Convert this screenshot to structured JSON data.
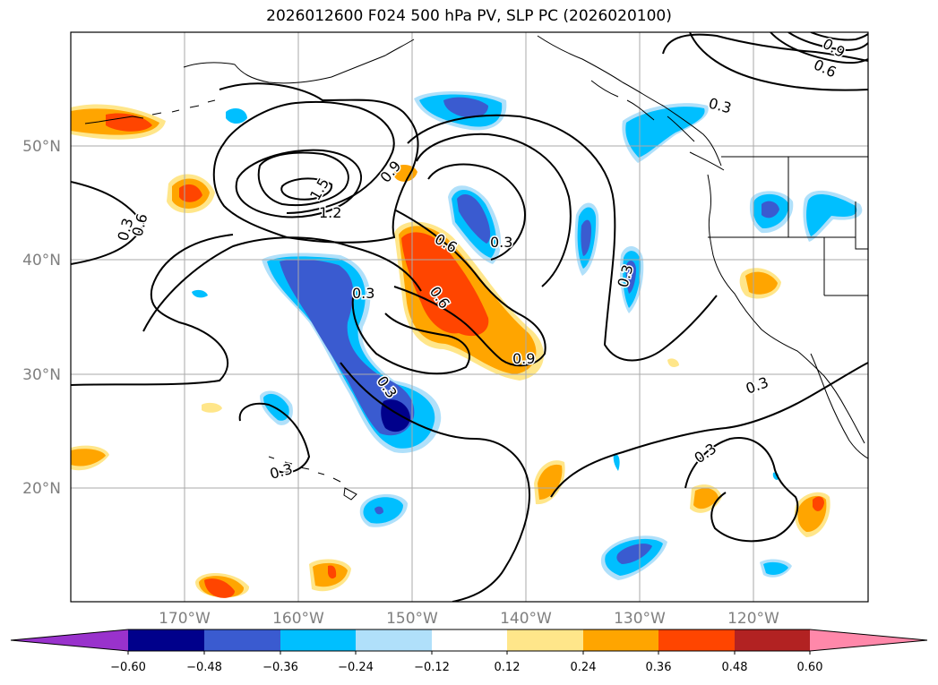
{
  "title": "2026012600 F024 500 hPa PV, SLP PC (2026020100)",
  "latitude_labels": [
    "50°N",
    "40°N",
    "30°N",
    "20°N"
  ],
  "longitude_labels": [
    "170°W",
    "160°W",
    "150°W",
    "140°W",
    "130°W",
    "120°W"
  ],
  "colorbar": {
    "ticks": [
      "−0.60",
      "−0.48",
      "−0.36",
      "−0.24",
      "−0.12",
      "0.12",
      "0.24",
      "0.36",
      "0.48",
      "0.60"
    ],
    "colors": [
      "#9932cc",
      "#00008b",
      "#3a5bd0",
      "#00bfff",
      "#b0e0fa",
      "#ffffff",
      "#ffe68a",
      "#ffa500",
      "#ff4500",
      "#b22222",
      "#ff88aa"
    ]
  },
  "contour_labels": [
    "0.9",
    "0.6",
    "0.3",
    "0.3",
    "0.6",
    "1.5",
    "1.2",
    "0.9",
    "0.6",
    "0.3",
    "0.3",
    "0.6",
    "0.9",
    "0.3",
    "0.3",
    "0.3",
    "0.3",
    "0.3"
  ],
  "colors": {
    "grid": "#aaaaaa",
    "coast": "#000000",
    "contour": "#000000",
    "tick_text": "#7f7f7f"
  }
}
